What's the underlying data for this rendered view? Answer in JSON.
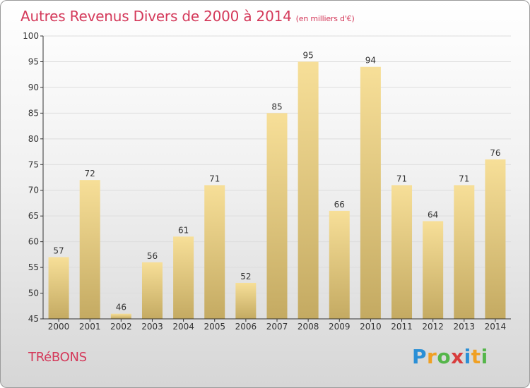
{
  "header": {
    "title": "Autres Revenus Divers de 2000 à 2014",
    "subtitle": "(en milliers d'€)"
  },
  "footer": {
    "town": "TRéBONS",
    "brand": "Proxiti",
    "brand_letters": [
      {
        "char": "P",
        "color": "#2a8fd6"
      },
      {
        "char": "r",
        "color": "#f0a023"
      },
      {
        "char": "o",
        "color": "#55b64a"
      },
      {
        "char": "x",
        "color": "#d83d3d"
      },
      {
        "char": "i",
        "color": "#2a8fd6"
      },
      {
        "char": "t",
        "color": "#f0a023"
      },
      {
        "char": "i",
        "color": "#55b64a"
      }
    ]
  },
  "colors": {
    "title": "#d4395a",
    "bar_top": "#f7df98",
    "bar_bottom": "#c4aa62",
    "grid": "#dddddd",
    "axis": "#333333"
  },
  "chart_data": {
    "type": "bar",
    "categories": [
      "2000",
      "2001",
      "2002",
      "2003",
      "2004",
      "2005",
      "2006",
      "2007",
      "2008",
      "2009",
      "2010",
      "2011",
      "2012",
      "2013",
      "2014"
    ],
    "values": [
      57,
      72,
      46,
      56,
      61,
      71,
      52,
      85,
      95,
      66,
      94,
      71,
      64,
      71,
      76
    ],
    "ylim": [
      45,
      100
    ],
    "yticks": [
      45,
      50,
      55,
      60,
      65,
      70,
      75,
      80,
      85,
      90,
      95,
      100
    ],
    "grid": true,
    "title": "Autres Revenus Divers de 2000 à 2014",
    "xlabel": "",
    "ylabel": ""
  }
}
